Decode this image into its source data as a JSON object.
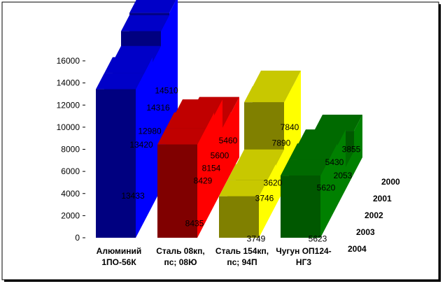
{
  "chart_data": {
    "type": "bar",
    "title": "",
    "categories": [
      "Алюминий 1ПО-56К",
      "Сталь 08кп, пс; 08Ю",
      "Сталь 154кп, пс; 94П",
      "Чугун ОП124-НГ3"
    ],
    "category_lines": [
      [
        "Алюминий",
        "1ПО-56К"
      ],
      [
        "Сталь 08кп,",
        "пс; 08Ю"
      ],
      [
        "Сталь 154кп,",
        "пс; 94П"
      ],
      [
        "Чугун ОП124-",
        "НГ3"
      ]
    ],
    "series": [
      {
        "name": "2004",
        "values": [
          13433,
          8435,
          3749,
          5623
        ]
      },
      {
        "name": "2003",
        "values": [
          13420,
          8429,
          3746,
          5620
        ]
      },
      {
        "name": "2002",
        "values": [
          12980,
          8154,
          3620,
          5430
        ]
      },
      {
        "name": "2001",
        "values": [
          14316,
          5600,
          7890,
          2053
        ]
      },
      {
        "name": "2000",
        "values": [
          14510,
          5460,
          7840,
          3855
        ]
      }
    ],
    "ylim": [
      0,
      16000
    ],
    "yticks": [
      "0",
      "2000",
      "4000",
      "6000",
      "8000",
      "10000",
      "12000",
      "14000",
      "16000"
    ],
    "colors": {
      "front": [
        "#000080",
        "#800000",
        "#808000",
        "#005800"
      ],
      "side": [
        "#0000ff",
        "#ff0000",
        "#ffff00",
        "#008000"
      ],
      "top": [
        "#0000c8",
        "#c00000",
        "#c8c800",
        "#006a00"
      ]
    }
  }
}
